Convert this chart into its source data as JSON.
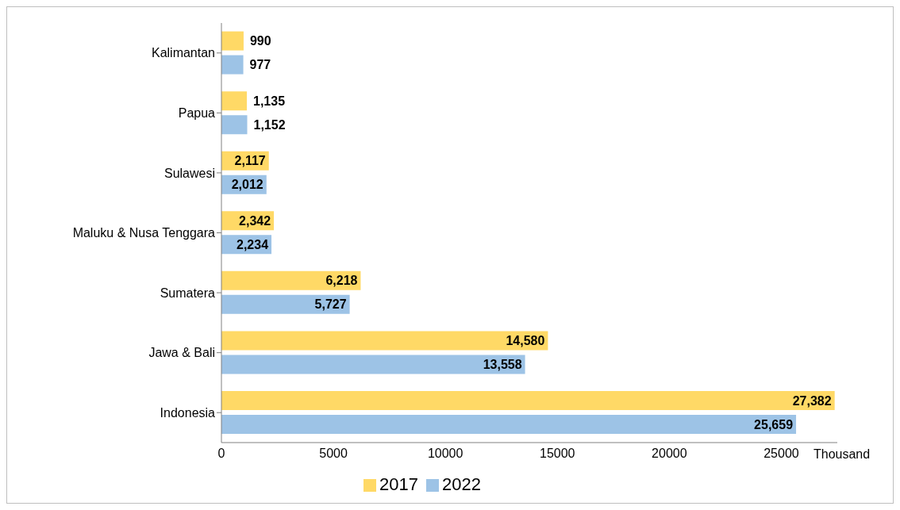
{
  "chart_data": {
    "type": "bar",
    "orientation": "horizontal",
    "xlabel": "Thousand",
    "categories": [
      "Kalimantan",
      "Papua",
      "Sulawesi",
      "Maluku & Nusa Tenggara",
      "Sumatera",
      "Jawa & Bali",
      "Indonesia"
    ],
    "series": [
      {
        "name": "2017",
        "color": "#ffd966",
        "values": [
          990,
          1135,
          2117,
          2342,
          6218,
          14580,
          27382
        ],
        "value_labels": [
          "990",
          "1,135",
          "2,117",
          "2,342",
          "6,218",
          "14,580",
          "27,382"
        ]
      },
      {
        "name": "2022",
        "color": "#9dc3e6",
        "values": [
          977,
          1152,
          2012,
          2234,
          5727,
          13558,
          25659
        ],
        "value_labels": [
          "977",
          "1,152",
          "2,012",
          "2,234",
          "5,727",
          "13,558",
          "25,659"
        ]
      }
    ],
    "xlim": [
      0,
      27500
    ],
    "xticks": [
      0,
      5000,
      10000,
      15000,
      20000,
      25000
    ],
    "grid": false,
    "legend": "bottom"
  }
}
